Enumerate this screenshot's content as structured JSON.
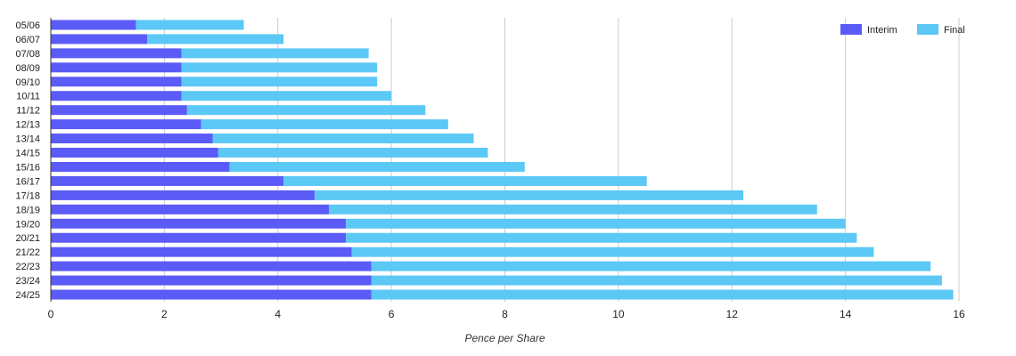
{
  "chart_data": {
    "type": "bar",
    "orientation": "horizontal",
    "stacked": true,
    "categories": [
      "05/06",
      "06/07",
      "07/08",
      "08/09",
      "09/10",
      "10/11",
      "11/12",
      "12/13",
      "13/14",
      "14/15",
      "15/16",
      "16/17",
      "17/18",
      "18/19",
      "19/20",
      "20/21",
      "21/22",
      "22/23",
      "23/24",
      "24/25"
    ],
    "series": [
      {
        "name": "Interim",
        "color": "#5b5bf7",
        "values": [
          1.5,
          1.7,
          2.3,
          2.3,
          2.3,
          2.3,
          2.4,
          2.65,
          2.85,
          2.95,
          3.15,
          4.1,
          4.65,
          4.9,
          5.2,
          5.2,
          5.3,
          5.65,
          5.65,
          5.65
        ]
      },
      {
        "name": "Final",
        "color": "#5bc8f5",
        "values": [
          1.9,
          2.4,
          3.3,
          3.45,
          3.45,
          3.7,
          4.2,
          4.35,
          4.6,
          4.75,
          5.2,
          6.4,
          7.55,
          8.6,
          8.8,
          9.0,
          9.2,
          9.85,
          10.05,
          10.25
        ]
      }
    ],
    "xlabel": "Pence per Share",
    "ylabel": "",
    "xlim": [
      0,
      16
    ],
    "xticks": [
      "0",
      "2",
      "4",
      "6",
      "8",
      "10",
      "12",
      "14",
      "16"
    ],
    "grid": true,
    "legend_position": "top-right"
  }
}
